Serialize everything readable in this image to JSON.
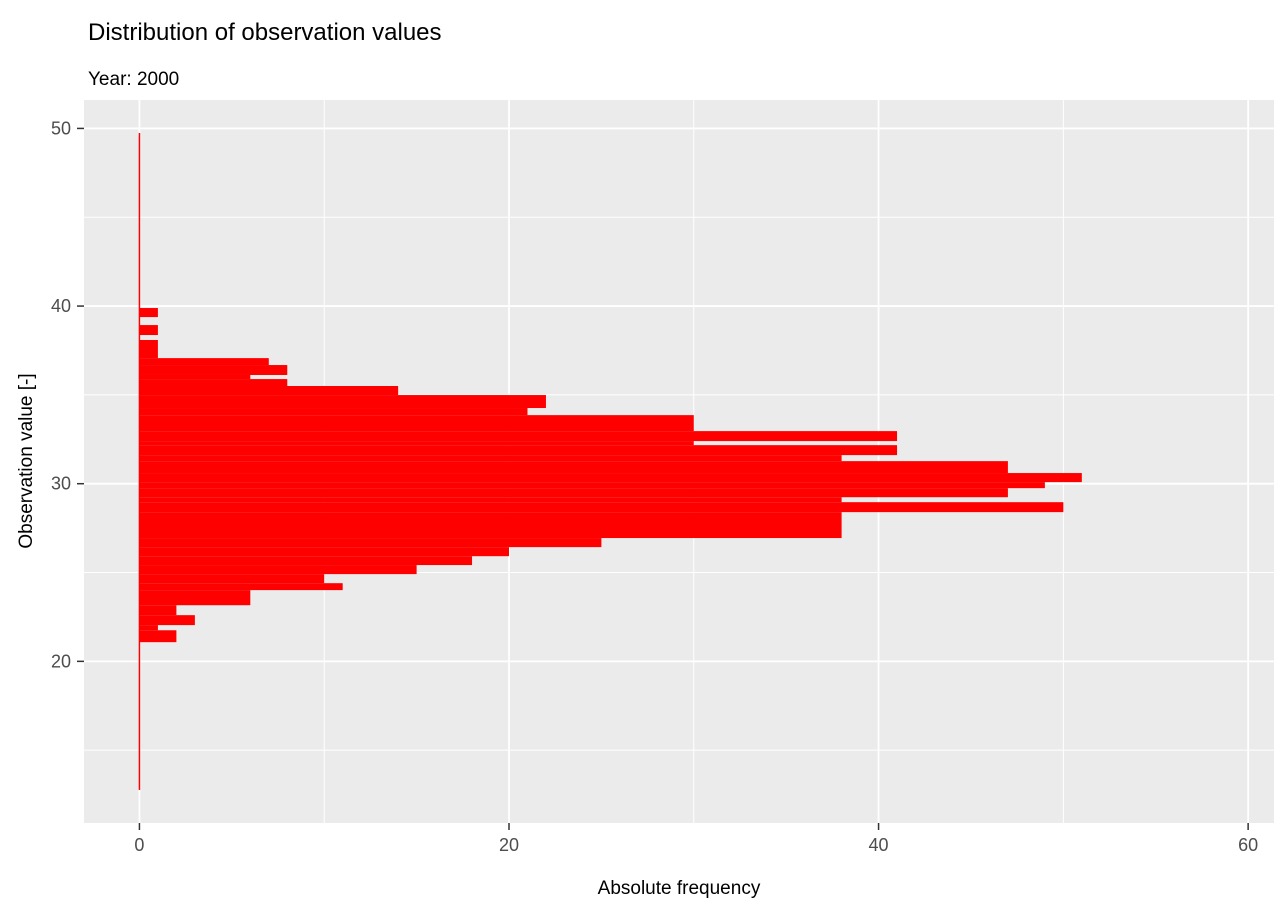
{
  "title": "Distribution of observation values",
  "subtitle": "Year: 2000",
  "colors": {
    "bar": "#FF0000",
    "panel_background": "#EBEBEB",
    "grid": "#FFFFFF",
    "tick_label": "#4D4D4D",
    "tick_mark": "#333333",
    "text": "#000000",
    "figure_background": "#FFFFFF"
  },
  "chart_data": {
    "type": "bar",
    "orientation": "horizontal",
    "title": "Distribution of observation values",
    "subtitle": "Year: 2000",
    "xlabel": "Absolute frequency",
    "ylabel": "Observation value [-]",
    "xlim": [
      -3.0,
      61.4
    ],
    "ylim": [
      10.9,
      51.6
    ],
    "x_ticks": [
      0,
      20,
      40,
      60
    ],
    "y_ticks": [
      20,
      30,
      40,
      50
    ],
    "x_minor_gridlines": [
      10,
      30,
      50
    ],
    "y_minor_gridlines": [
      15,
      25,
      35,
      45
    ],
    "grid": true,
    "legend": "none",
    "bar_color": "#FF0000",
    "zero_frequency_line": {
      "frequency": 0,
      "value_min": 12.76,
      "value_max": 49.74
    },
    "bars_note": "each bar = [observation_value_top, observation_value_bottom, absolute_frequency]",
    "bars": [
      [
        39.89,
        39.38,
        1
      ],
      [
        38.93,
        38.37,
        1
      ],
      [
        38.09,
        37.07,
        1
      ],
      [
        37.07,
        36.68,
        7
      ],
      [
        36.68,
        36.12,
        8
      ],
      [
        36.12,
        35.89,
        6
      ],
      [
        35.89,
        35.5,
        8
      ],
      [
        35.5,
        34.99,
        14
      ],
      [
        34.99,
        34.26,
        22
      ],
      [
        34.26,
        33.86,
        21
      ],
      [
        33.86,
        32.96,
        30
      ],
      [
        32.96,
        32.4,
        41
      ],
      [
        32.4,
        32.17,
        30
      ],
      [
        32.17,
        31.61,
        41
      ],
      [
        31.61,
        31.27,
        38
      ],
      [
        31.27,
        30.6,
        47
      ],
      [
        30.6,
        30.09,
        51
      ],
      [
        30.09,
        29.75,
        49
      ],
      [
        29.75,
        29.24,
        47
      ],
      [
        29.24,
        28.96,
        38
      ],
      [
        28.96,
        28.4,
        50
      ],
      [
        28.4,
        26.94,
        38
      ],
      [
        26.94,
        26.43,
        25
      ],
      [
        26.43,
        25.92,
        20
      ],
      [
        25.92,
        25.42,
        18
      ],
      [
        25.42,
        24.91,
        15
      ],
      [
        24.91,
        24.4,
        10
      ],
      [
        24.4,
        24.01,
        11
      ],
      [
        24.01,
        23.16,
        6
      ],
      [
        23.16,
        22.6,
        2
      ],
      [
        22.6,
        22.04,
        3
      ],
      [
        22.04,
        21.75,
        1
      ],
      [
        21.75,
        21.08,
        2
      ]
    ]
  }
}
